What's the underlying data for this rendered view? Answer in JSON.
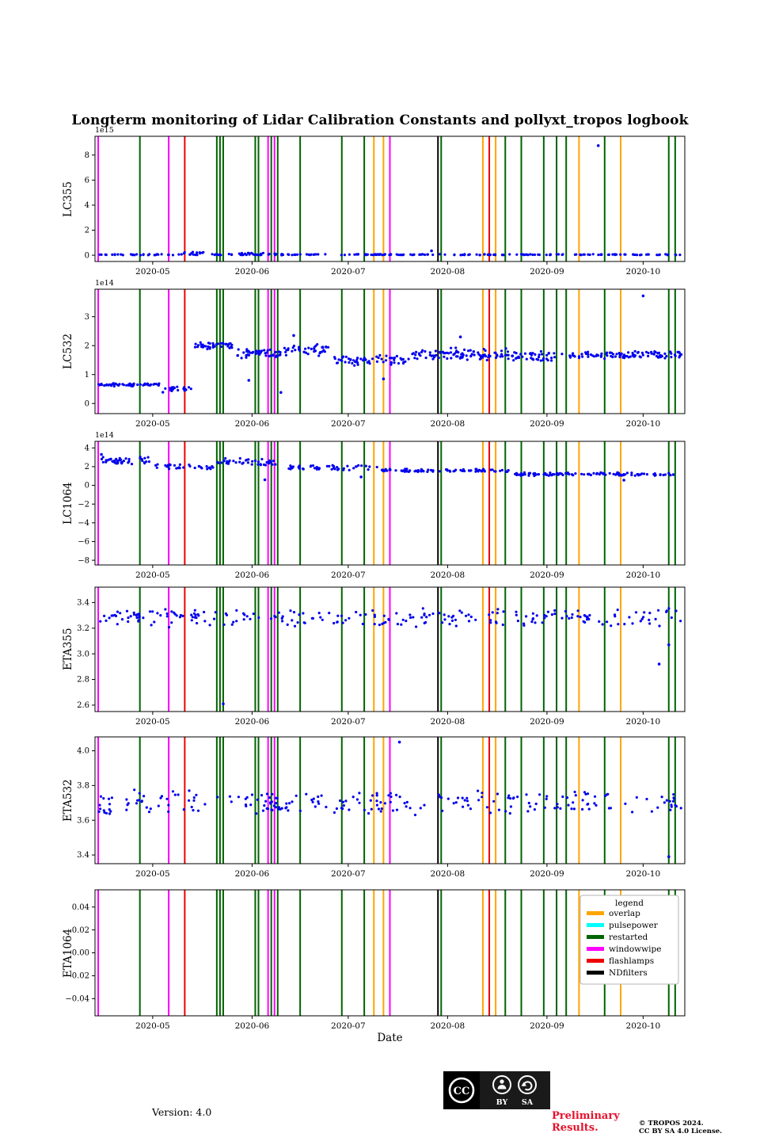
{
  "colors": {
    "scatter": "#0000ee",
    "overlap": "#ffa500",
    "pulsepower": "#00ffff",
    "restarted": "#006400",
    "windowwipe": "#ff00ff",
    "flashlamps": "#ee0000",
    "NDfilters": "#000000"
  },
  "footer": {
    "version": "Version: 4.0",
    "preliminary_line1": "Preliminary",
    "preliminary_line2": "Results.",
    "copyright_line1": "© TROPOS 2024.",
    "copyright_line2": "CC BY SA 4.0 License.",
    "cc_badge": {
      "cc_label": "CC",
      "by_label": "BY",
      "sa_label": "SA"
    }
  },
  "chart_data": {
    "type": "scatter",
    "title": "Longterm monitoring of Lidar Calibration Constants and pollyxt_tropos logbook",
    "xlabel": "Date",
    "seed": 88,
    "x_domain": [
      "2020-04-13",
      "2020-10-14"
    ],
    "x_ticks": [
      {
        "date": "2020-05-01",
        "label": "2020-05"
      },
      {
        "date": "2020-06-01",
        "label": "2020-06"
      },
      {
        "date": "2020-07-01",
        "label": "2020-07"
      },
      {
        "date": "2020-08-01",
        "label": "2020-08"
      },
      {
        "date": "2020-09-01",
        "label": "2020-09"
      },
      {
        "date": "2020-10-01",
        "label": "2020-10"
      }
    ],
    "legend": {
      "title": "legend",
      "entries": [
        {
          "label": "overlap",
          "color_key": "overlap"
        },
        {
          "label": "pulsepower",
          "color_key": "pulsepower"
        },
        {
          "label": "restarted",
          "color_key": "restarted"
        },
        {
          "label": "windowwipe",
          "color_key": "windowwipe"
        },
        {
          "label": "flashlamps",
          "color_key": "flashlamps"
        },
        {
          "label": "NDfilters",
          "color_key": "NDfilters"
        }
      ]
    },
    "events": [
      {
        "date": "2020-04-14",
        "type": "windowwipe"
      },
      {
        "date": "2020-04-27",
        "type": "restarted"
      },
      {
        "date": "2020-05-06",
        "type": "windowwipe"
      },
      {
        "date": "2020-05-11",
        "type": "flashlamps"
      },
      {
        "date": "2020-05-21",
        "type": "restarted"
      },
      {
        "date": "2020-05-22",
        "type": "restarted"
      },
      {
        "date": "2020-05-23",
        "type": "restarted"
      },
      {
        "date": "2020-06-02",
        "type": "restarted"
      },
      {
        "date": "2020-06-03",
        "type": "restarted"
      },
      {
        "date": "2020-06-06",
        "type": "windowwipe"
      },
      {
        "date": "2020-06-07",
        "type": "restarted"
      },
      {
        "date": "2020-06-08",
        "type": "windowwipe"
      },
      {
        "date": "2020-06-09",
        "type": "restarted"
      },
      {
        "date": "2020-06-16",
        "type": "restarted"
      },
      {
        "date": "2020-06-29",
        "type": "restarted"
      },
      {
        "date": "2020-07-06",
        "type": "restarted"
      },
      {
        "date": "2020-07-09",
        "type": "overlap"
      },
      {
        "date": "2020-07-12",
        "type": "overlap"
      },
      {
        "date": "2020-07-14",
        "type": "windowwipe"
      },
      {
        "date": "2020-07-29",
        "type": "NDfilters"
      },
      {
        "date": "2020-07-30",
        "type": "restarted"
      },
      {
        "date": "2020-08-12",
        "type": "overlap"
      },
      {
        "date": "2020-08-14",
        "type": "flashlamps"
      },
      {
        "date": "2020-08-16",
        "type": "overlap"
      },
      {
        "date": "2020-08-19",
        "type": "restarted"
      },
      {
        "date": "2020-08-24",
        "type": "restarted"
      },
      {
        "date": "2020-08-31",
        "type": "restarted"
      },
      {
        "date": "2020-09-04",
        "type": "restarted"
      },
      {
        "date": "2020-09-07",
        "type": "restarted"
      },
      {
        "date": "2020-09-11",
        "type": "overlap"
      },
      {
        "date": "2020-09-19",
        "type": "restarted"
      },
      {
        "date": "2020-09-24",
        "type": "overlap"
      },
      {
        "date": "2020-10-09",
        "type": "restarted"
      },
      {
        "date": "2020-10-11",
        "type": "restarted"
      }
    ],
    "subplots": [
      {
        "ylabel": "LC355",
        "offset_text": "1e15",
        "y_domain": [
          -0.5,
          9.5
        ],
        "y_ticks": [
          {
            "v": 0,
            "l": "0"
          },
          {
            "v": 2,
            "l": "2"
          },
          {
            "v": 4,
            "l": "4"
          },
          {
            "v": 6,
            "l": "6"
          },
          {
            "v": 8,
            "l": "8"
          }
        ],
        "clusters": [
          {
            "from": "2020-04-14",
            "to": "2020-10-13",
            "n": 230,
            "mean": 0.05,
            "spread": 0.05
          },
          {
            "from": "2020-05-10",
            "to": "2020-05-20",
            "n": 10,
            "mean": 0.18,
            "spread": 0.1
          },
          {
            "from": "2020-05-27",
            "to": "2020-06-09",
            "n": 10,
            "mean": 0.12,
            "spread": 0.08
          }
        ],
        "outliers": [
          {
            "date": "2020-07-27",
            "y": 0.35
          },
          {
            "date": "2020-09-17",
            "y": 8.75
          }
        ]
      },
      {
        "ylabel": "LC532",
        "offset_text": "1e14",
        "y_domain": [
          -0.35,
          3.95
        ],
        "y_ticks": [
          {
            "v": 0,
            "l": "0"
          },
          {
            "v": 1,
            "l": "1"
          },
          {
            "v": 2,
            "l": "2"
          },
          {
            "v": 3,
            "l": "3"
          }
        ],
        "clusters": [
          {
            "from": "2020-04-14",
            "to": "2020-05-03",
            "n": 55,
            "mean": 0.65,
            "spread": 0.06
          },
          {
            "from": "2020-05-04",
            "to": "2020-05-13",
            "n": 22,
            "mean": 0.48,
            "spread": 0.12
          },
          {
            "from": "2020-05-14",
            "to": "2020-05-26",
            "n": 42,
            "mean": 2.0,
            "spread": 0.14
          },
          {
            "from": "2020-05-27",
            "to": "2020-06-10",
            "n": 48,
            "mean": 1.72,
            "spread": 0.2
          },
          {
            "from": "2020-06-11",
            "to": "2020-06-25",
            "n": 40,
            "mean": 1.85,
            "spread": 0.25
          },
          {
            "from": "2020-06-26",
            "to": "2020-07-20",
            "n": 62,
            "mean": 1.5,
            "spread": 0.22
          },
          {
            "from": "2020-07-21",
            "to": "2020-08-20",
            "n": 95,
            "mean": 1.7,
            "spread": 0.25
          },
          {
            "from": "2020-08-21",
            "to": "2020-09-10",
            "n": 50,
            "mean": 1.62,
            "spread": 0.2
          },
          {
            "from": "2020-09-11",
            "to": "2020-10-13",
            "n": 95,
            "mean": 1.68,
            "spread": 0.15
          }
        ],
        "outliers": [
          {
            "date": "2020-10-01",
            "y": 3.72
          },
          {
            "date": "2020-06-10",
            "y": 0.38
          },
          {
            "date": "2020-05-31",
            "y": 0.8
          },
          {
            "date": "2020-06-14",
            "y": 2.35
          },
          {
            "date": "2020-07-12",
            "y": 0.85
          },
          {
            "date": "2020-08-05",
            "y": 2.3
          }
        ]
      },
      {
        "ylabel": "LC1064",
        "offset_text": "1e14",
        "y_domain": [
          -8.5,
          4.7
        ],
        "y_ticks": [
          {
            "v": -8,
            "l": "−8"
          },
          {
            "v": -6,
            "l": "−6"
          },
          {
            "v": -4,
            "l": "−4"
          },
          {
            "v": -2,
            "l": "−2"
          },
          {
            "v": 0,
            "l": "0"
          },
          {
            "v": 2,
            "l": "2"
          },
          {
            "v": 4,
            "l": "4"
          }
        ],
        "clusters": [
          {
            "from": "2020-04-14",
            "to": "2020-04-30",
            "n": 42,
            "mean": 2.6,
            "spread": 0.45
          },
          {
            "from": "2020-05-01",
            "to": "2020-05-20",
            "n": 32,
            "mean": 2.0,
            "spread": 0.35
          },
          {
            "from": "2020-05-21",
            "to": "2020-06-10",
            "n": 42,
            "mean": 2.5,
            "spread": 0.5
          },
          {
            "from": "2020-06-11",
            "to": "2020-07-10",
            "n": 48,
            "mean": 1.9,
            "spread": 0.3
          },
          {
            "from": "2020-07-11",
            "to": "2020-08-20",
            "n": 85,
            "mean": 1.6,
            "spread": 0.2
          },
          {
            "from": "2020-08-21",
            "to": "2020-10-13",
            "n": 110,
            "mean": 1.2,
            "spread": 0.2
          }
        ],
        "outliers": [
          {
            "date": "2020-04-15",
            "y": 3.3
          },
          {
            "date": "2020-06-05",
            "y": 0.6
          },
          {
            "date": "2020-07-05",
            "y": 0.9
          },
          {
            "date": "2020-09-25",
            "y": 0.55
          }
        ]
      },
      {
        "ylabel": "ETA355",
        "y_domain": [
          2.55,
          3.52
        ],
        "y_ticks": [
          {
            "v": 2.6,
            "l": "2.6"
          },
          {
            "v": 2.8,
            "l": "2.8"
          },
          {
            "v": 3.0,
            "l": "3.0"
          },
          {
            "v": 3.2,
            "l": "3.2"
          },
          {
            "v": 3.4,
            "l": "3.4"
          }
        ],
        "clusters": [
          {
            "from": "2020-04-14",
            "to": "2020-10-13",
            "n": 235,
            "mean": 3.28,
            "spread": 0.08
          }
        ],
        "outliers": [
          {
            "date": "2020-05-23",
            "y": 2.61
          },
          {
            "date": "2020-10-06",
            "y": 2.92
          },
          {
            "date": "2020-10-09",
            "y": 3.07
          }
        ]
      },
      {
        "ylabel": "ETA532",
        "y_domain": [
          3.35,
          4.08
        ],
        "y_ticks": [
          {
            "v": 3.4,
            "l": "3.4"
          },
          {
            "v": 3.6,
            "l": "3.6"
          },
          {
            "v": 3.8,
            "l": "3.8"
          },
          {
            "v": 4.0,
            "l": "4.0"
          }
        ],
        "clusters": [
          {
            "from": "2020-04-14",
            "to": "2020-10-13",
            "n": 235,
            "mean": 3.7,
            "spread": 0.08
          }
        ],
        "outliers": [
          {
            "date": "2020-07-17",
            "y": 4.05
          },
          {
            "date": "2020-10-09",
            "y": 3.39
          }
        ]
      },
      {
        "ylabel": "ETA1064",
        "y_domain": [
          -0.055,
          0.055
        ],
        "y_ticks": [
          {
            "v": -0.04,
            "l": "−0.04"
          },
          {
            "v": -0.02,
            "l": "−0.02"
          },
          {
            "v": 0,
            "l": "0.00"
          },
          {
            "v": 0.02,
            "l": "0.02"
          },
          {
            "v": 0.04,
            "l": "0.04"
          }
        ],
        "clusters": [],
        "outliers": [],
        "show_legend": true
      }
    ]
  }
}
